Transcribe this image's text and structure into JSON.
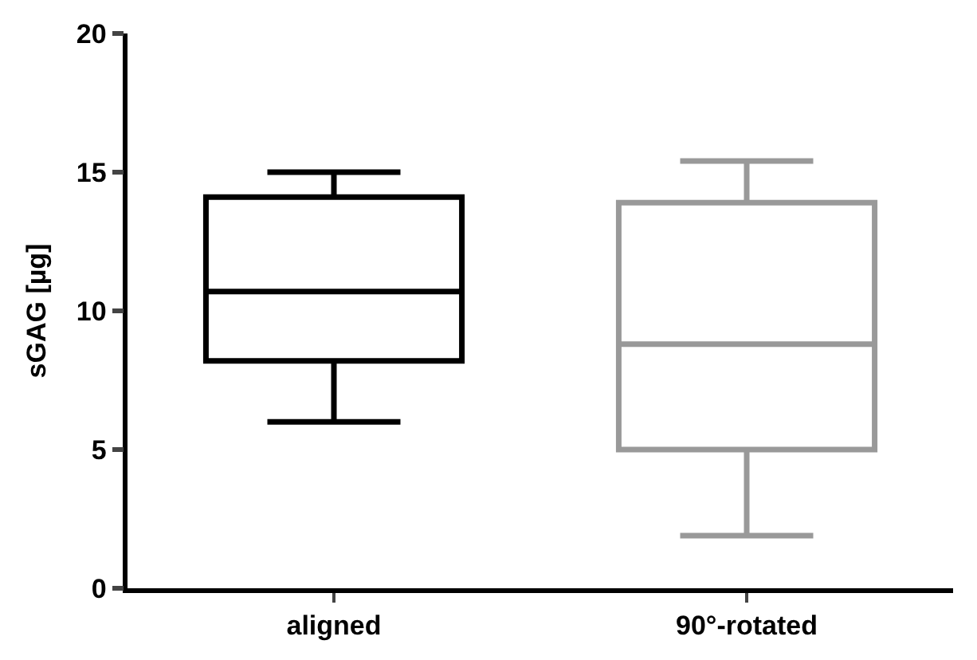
{
  "chart_data": {
    "type": "box",
    "ylabel": "sGAG [µg]",
    "categories": [
      "aligned",
      "90°-rotated"
    ],
    "boxes": [
      {
        "low": 6.0,
        "q1": 8.2,
        "median": 10.7,
        "q3": 14.1,
        "high": 15.0
      },
      {
        "low": 1.9,
        "q1": 5.0,
        "median": 8.8,
        "q3": 13.9,
        "high": 15.4
      }
    ],
    "colors": [
      "#000000",
      "#999999"
    ],
    "ylim": [
      0,
      20
    ],
    "yticks": [
      0,
      5,
      10,
      15,
      20
    ]
  }
}
